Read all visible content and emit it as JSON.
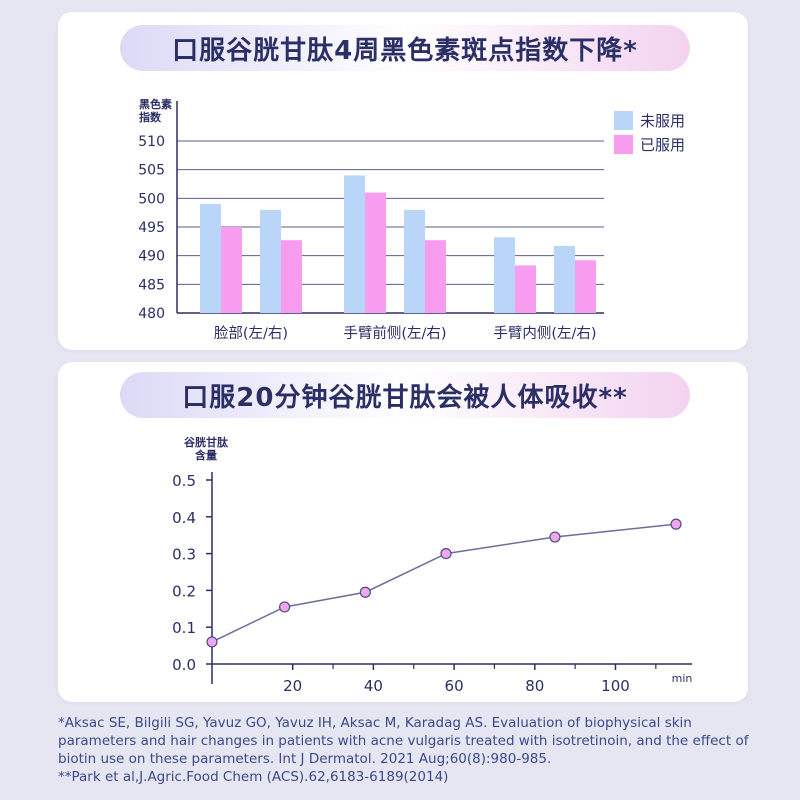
{
  "chart_data": [
    {
      "type": "bar",
      "title": "口服谷胱甘肽4周黑色素斑点指数下降*",
      "ylabel": "黑色素\n指数",
      "ylim": [
        480,
        510
      ],
      "yticks": [
        480,
        485,
        490,
        495,
        500,
        505,
        510
      ],
      "groups": [
        {
          "label": "脸部(左/右)",
          "before": [
            499,
            498
          ],
          "after": [
            495,
            492.7
          ]
        },
        {
          "label": "手臂前侧(左/右)",
          "before": [
            504,
            498
          ],
          "after": [
            501,
            492.7
          ]
        },
        {
          "label": "手臂内侧(左/右)",
          "before": [
            493.2,
            491.7
          ],
          "after": [
            488.3,
            489.2
          ]
        }
      ],
      "series": [
        {
          "name": "未服用",
          "color": "#b9d5f8"
        },
        {
          "name": "已服用",
          "color": "#f89cf0"
        }
      ],
      "legend": "top-right",
      "grid": true
    },
    {
      "type": "line",
      "title": "口服20分钟谷胱甘肽会被人体吸收**",
      "ylabel": "谷胱甘肽\n含量",
      "xlabel": "min",
      "xlim": [
        0,
        115
      ],
      "ylim": [
        0,
        0.5
      ],
      "xticks": [
        20,
        40,
        60,
        80,
        100
      ],
      "yticks": [
        "0.0",
        "0.1",
        "0.2",
        "0.3",
        "0.4",
        "0.5"
      ],
      "x": [
        0,
        18,
        38,
        58,
        85,
        115
      ],
      "y": [
        0.06,
        0.155,
        0.195,
        0.3,
        0.345,
        0.38
      ],
      "line_color": "#6a6f9a",
      "marker_color": "#f0a6ee"
    }
  ],
  "references": [
    "*Aksac SE, Bilgili SG, Yavuz GO, Yavuz IH, Aksac M, Karadag AS. Evaluation of biophysical skin parameters and hair changes in patients with acne vulgaris treated with isotretinoin, and the effect of biotin use on these parameters. Int J Dermatol. 2021 Aug;60(8):980-985.",
    "**Park et al,J.Agric.Food Chem (ACS).62,6183-6189(2014)"
  ]
}
